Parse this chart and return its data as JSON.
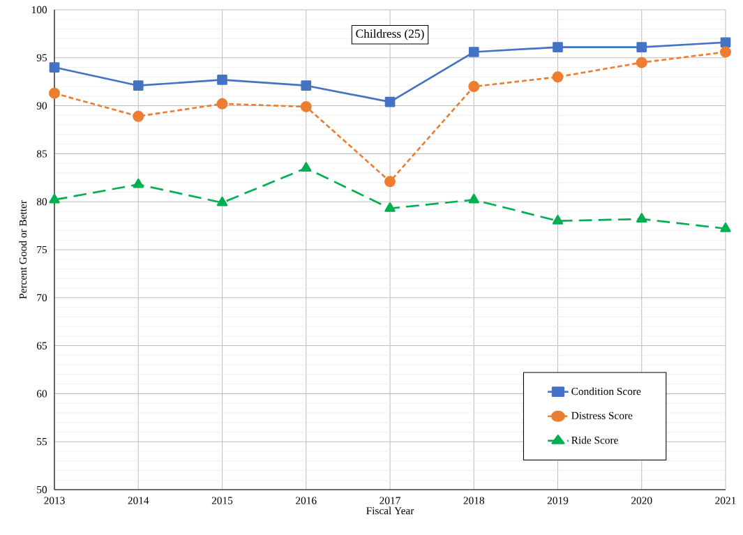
{
  "chart_data": {
    "type": "line",
    "title": "Childress (25)",
    "xlabel": "Fiscal Year",
    "ylabel": "Percent Good or Better",
    "x": [
      2013,
      2014,
      2015,
      2016,
      2017,
      2018,
      2019,
      2020,
      2021
    ],
    "series": [
      {
        "name": "Condition Score",
        "color": "#4472c4",
        "marker": "square",
        "line_style": "solid",
        "values": [
          94.0,
          92.1,
          92.7,
          92.1,
          90.4,
          95.6,
          96.1,
          96.1,
          96.6
        ]
      },
      {
        "name": "Distress Score",
        "color": "#ed7d31",
        "marker": "circle",
        "line_style": "dotted",
        "values": [
          91.3,
          88.9,
          90.2,
          89.9,
          82.1,
          92.0,
          93.0,
          94.5,
          95.6
        ]
      },
      {
        "name": "Ride Score",
        "color": "#00b050",
        "marker": "triangle",
        "line_style": "dashed",
        "values": [
          80.2,
          81.8,
          79.9,
          83.5,
          79.3,
          80.2,
          78.0,
          78.2,
          77.2
        ]
      }
    ],
    "xlim": [
      2013,
      2021
    ],
    "xticks": [
      2013,
      2014,
      2015,
      2016,
      2017,
      2018,
      2019,
      2020,
      2021
    ],
    "ylim": [
      50,
      100
    ],
    "yticks": [
      50,
      55,
      60,
      65,
      70,
      75,
      80,
      85,
      90,
      95,
      100
    ],
    "grid": true,
    "legend": "bottom right"
  }
}
